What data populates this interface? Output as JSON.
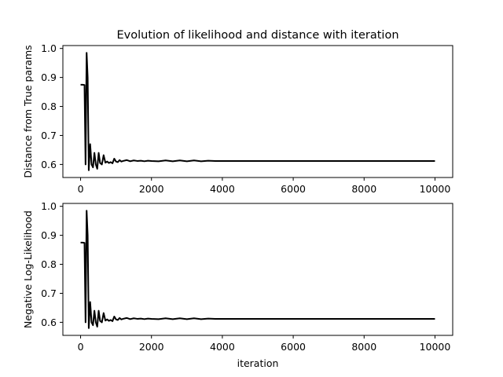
{
  "figure": {
    "title": "Evolution of likelihood and distance with iteration",
    "background": "#ffffff"
  },
  "chart_data": [
    {
      "type": "line",
      "title": "Evolution of likelihood and distance with iteration",
      "xlabel": "",
      "ylabel": "Distance from True params",
      "xlim": [
        -500,
        10500
      ],
      "ylim": [
        0.555,
        1.01
      ],
      "xticks": [
        0,
        2000,
        4000,
        6000,
        8000,
        10000
      ],
      "yticks": [
        0.6,
        0.7,
        0.8,
        0.9,
        1.0
      ],
      "xtick_labels": [
        "0",
        "2000",
        "4000",
        "6000",
        "8000",
        "10000"
      ],
      "ytick_labels": [
        "0.6",
        "0.7",
        "0.8",
        "0.9",
        "1.0"
      ],
      "grid": false,
      "series": [
        {
          "color": "#000000",
          "points": [
            [
              0,
              0.875
            ],
            [
              60,
              0.875
            ],
            [
              110,
              0.874
            ],
            [
              140,
              0.6
            ],
            [
              170,
              0.985
            ],
            [
              200,
              0.9
            ],
            [
              230,
              0.58
            ],
            [
              270,
              0.67
            ],
            [
              310,
              0.6
            ],
            [
              350,
              0.59
            ],
            [
              390,
              0.64
            ],
            [
              430,
              0.6
            ],
            [
              470,
              0.585
            ],
            [
              510,
              0.64
            ],
            [
              550,
              0.605
            ],
            [
              600,
              0.6
            ],
            [
              650,
              0.632
            ],
            [
              700,
              0.606
            ],
            [
              750,
              0.61
            ],
            [
              800,
              0.605
            ],
            [
              850,
              0.608
            ],
            [
              900,
              0.604
            ],
            [
              950,
              0.62
            ],
            [
              1000,
              0.61
            ],
            [
              1050,
              0.608
            ],
            [
              1100,
              0.615
            ],
            [
              1150,
              0.61
            ],
            [
              1200,
              0.612
            ],
            [
              1300,
              0.615
            ],
            [
              1400,
              0.611
            ],
            [
              1500,
              0.614
            ],
            [
              1600,
              0.612
            ],
            [
              1700,
              0.613
            ],
            [
              1800,
              0.611
            ],
            [
              1900,
              0.613
            ],
            [
              2000,
              0.612
            ],
            [
              2200,
              0.611
            ],
            [
              2400,
              0.614
            ],
            [
              2600,
              0.611
            ],
            [
              2800,
              0.614
            ],
            [
              3000,
              0.611
            ],
            [
              3200,
              0.614
            ],
            [
              3400,
              0.611
            ],
            [
              3600,
              0.613
            ],
            [
              3800,
              0.612
            ],
            [
              4000,
              0.612
            ],
            [
              5000,
              0.612
            ],
            [
              6000,
              0.612
            ],
            [
              7000,
              0.612
            ],
            [
              8000,
              0.612
            ],
            [
              9000,
              0.612
            ],
            [
              10000,
              0.612
            ]
          ]
        }
      ]
    },
    {
      "type": "line",
      "title": "",
      "xlabel": "iteration",
      "ylabel": "Negative Log-Likelihood",
      "xlim": [
        -500,
        10500
      ],
      "ylim": [
        0.555,
        1.01
      ],
      "xticks": [
        0,
        2000,
        4000,
        6000,
        8000,
        10000
      ],
      "yticks": [
        0.6,
        0.7,
        0.8,
        0.9,
        1.0
      ],
      "xtick_labels": [
        "0",
        "2000",
        "4000",
        "6000",
        "8000",
        "10000"
      ],
      "ytick_labels": [
        "0.6",
        "0.7",
        "0.8",
        "0.9",
        "1.0"
      ],
      "grid": false,
      "series": [
        {
          "color": "#000000",
          "points": [
            [
              0,
              0.875
            ],
            [
              60,
              0.875
            ],
            [
              110,
              0.874
            ],
            [
              140,
              0.6
            ],
            [
              170,
              0.985
            ],
            [
              200,
              0.9
            ],
            [
              230,
              0.58
            ],
            [
              270,
              0.67
            ],
            [
              310,
              0.6
            ],
            [
              350,
              0.59
            ],
            [
              390,
              0.64
            ],
            [
              430,
              0.6
            ],
            [
              470,
              0.585
            ],
            [
              510,
              0.64
            ],
            [
              550,
              0.605
            ],
            [
              600,
              0.6
            ],
            [
              650,
              0.632
            ],
            [
              700,
              0.606
            ],
            [
              750,
              0.61
            ],
            [
              800,
              0.605
            ],
            [
              850,
              0.608
            ],
            [
              900,
              0.604
            ],
            [
              950,
              0.62
            ],
            [
              1000,
              0.61
            ],
            [
              1050,
              0.608
            ],
            [
              1100,
              0.615
            ],
            [
              1150,
              0.61
            ],
            [
              1200,
              0.612
            ],
            [
              1300,
              0.615
            ],
            [
              1400,
              0.611
            ],
            [
              1500,
              0.614
            ],
            [
              1600,
              0.612
            ],
            [
              1700,
              0.613
            ],
            [
              1800,
              0.611
            ],
            [
              1900,
              0.613
            ],
            [
              2000,
              0.612
            ],
            [
              2200,
              0.611
            ],
            [
              2400,
              0.614
            ],
            [
              2600,
              0.611
            ],
            [
              2800,
              0.614
            ],
            [
              3000,
              0.611
            ],
            [
              3200,
              0.614
            ],
            [
              3400,
              0.611
            ],
            [
              3600,
              0.613
            ],
            [
              3800,
              0.612
            ],
            [
              4000,
              0.612
            ],
            [
              5000,
              0.612
            ],
            [
              6000,
              0.612
            ],
            [
              7000,
              0.612
            ],
            [
              8000,
              0.612
            ],
            [
              9000,
              0.612
            ],
            [
              10000,
              0.612
            ]
          ]
        }
      ]
    }
  ]
}
